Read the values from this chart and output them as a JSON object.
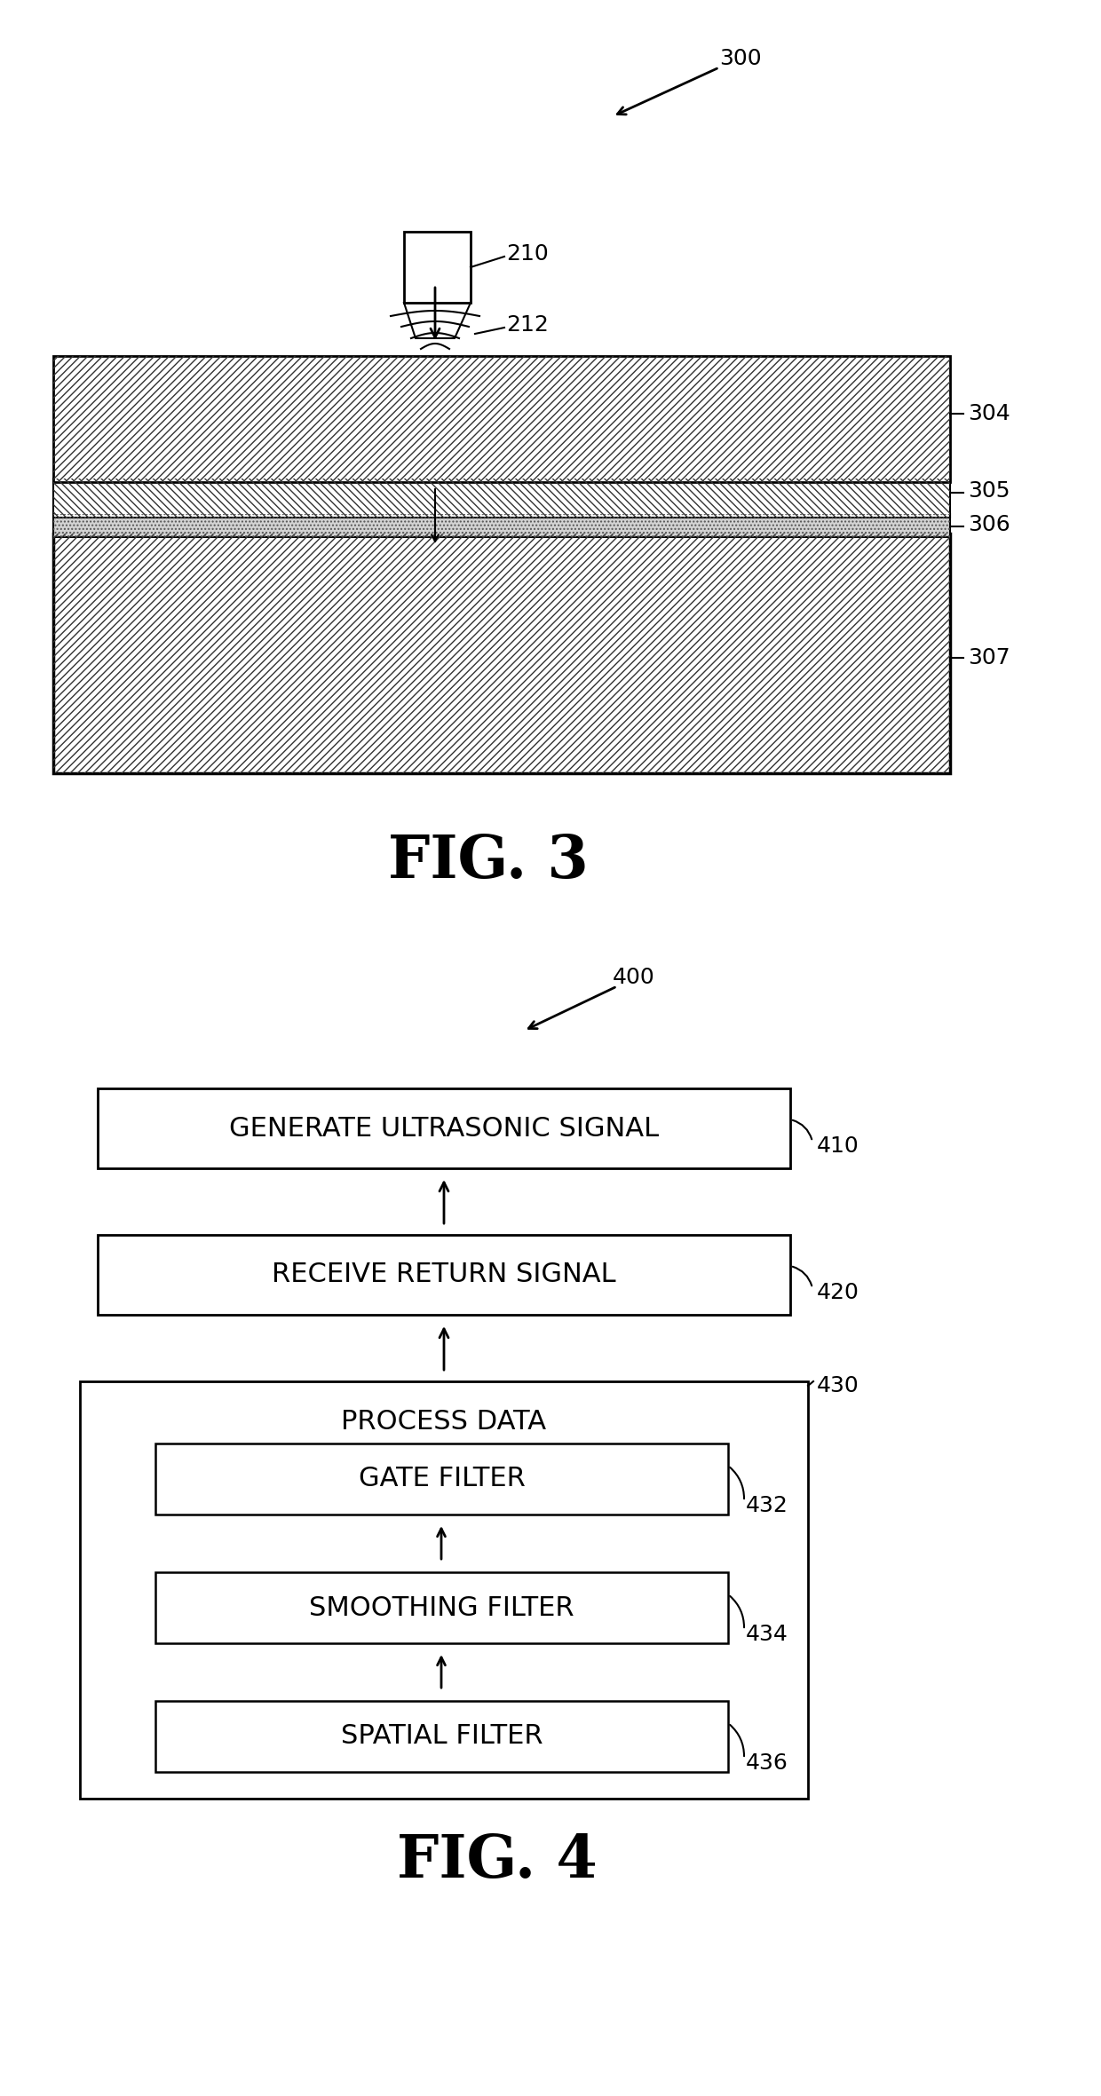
{
  "fig3_label": "FIG. 3",
  "fig4_label": "FIG. 4",
  "ref_300": "300",
  "ref_210": "210",
  "ref_212": "212",
  "ref_304": "304",
  "ref_305": "305",
  "ref_306": "306",
  "ref_307": "307",
  "ref_400": "400",
  "ref_410": "410",
  "ref_420": "420",
  "ref_430": "430",
  "ref_432": "432",
  "ref_434": "434",
  "ref_436": "436",
  "box_410_text": "GENERATE ULTRASONIC SIGNAL",
  "box_420_text": "RECEIVE RETURN SIGNAL",
  "box_430_text": "PROCESS DATA",
  "box_432_text": "GATE FILTER",
  "box_434_text": "SMOOTHING FILTER",
  "box_436_text": "SPATIAL FILTER",
  "background_color": "#ffffff",
  "line_color": "#000000"
}
